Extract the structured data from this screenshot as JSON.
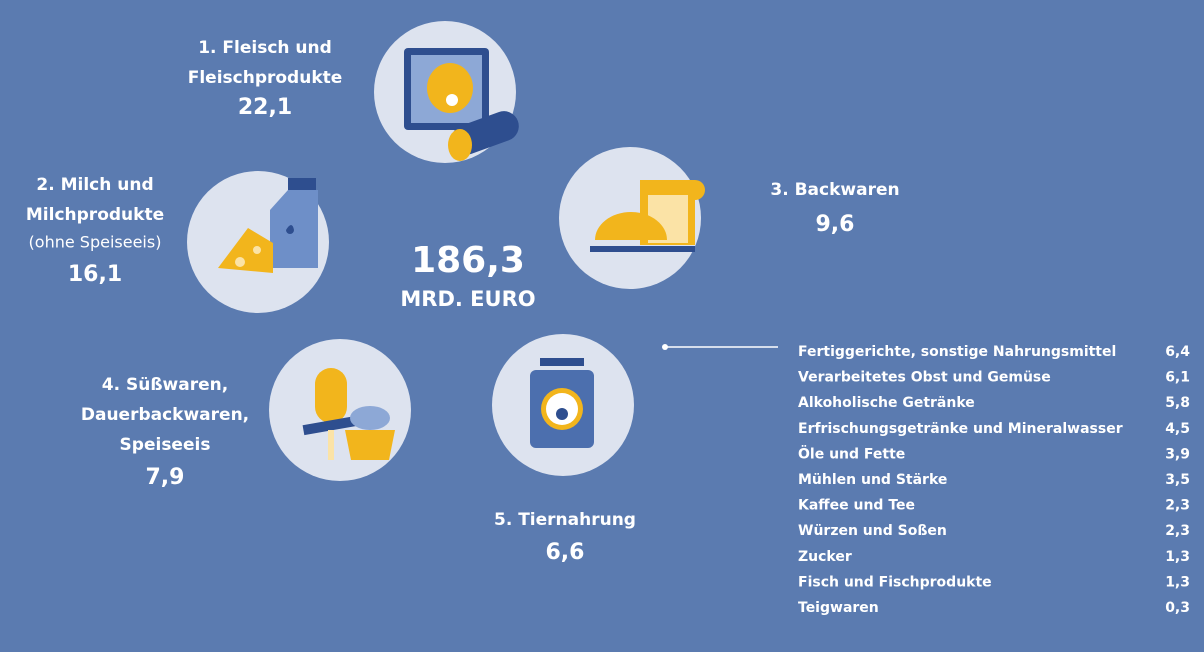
{
  "total": {
    "value": "186,3",
    "unit": "MRD. EURO"
  },
  "groups": [
    {
      "lines": [
        "1. Fleisch und",
        "Fleischprodukte"
      ],
      "value": "22,1"
    },
    {
      "lines": [
        "2. Milch und",
        "Milchprodukte"
      ],
      "note": "(ohne Speiseeis)",
      "value": "16,1"
    },
    {
      "lines": [
        "3. Backwaren"
      ],
      "value": "9,6"
    },
    {
      "lines": [
        "4. Süßwaren,",
        "Dauerbackwaren,",
        "Speiseeis"
      ],
      "value": "7,9"
    },
    {
      "lines": [
        "5. Tiernahrung"
      ],
      "value": "6,6"
    }
  ],
  "others": [
    {
      "name": "Fertiggerichte, sonstige Nahrungsmittel",
      "value": "6,4"
    },
    {
      "name": "Verarbeitetes Obst und Gemüse",
      "value": "6,1"
    },
    {
      "name": "Alkoholische Getränke",
      "value": "5,8"
    },
    {
      "name": "Erfrischungsgetränke und Mineralwasser",
      "value": "4,5"
    },
    {
      "name": "Öle und Fette",
      "value": "3,9"
    },
    {
      "name": "Mühlen und Stärke",
      "value": "3,5"
    },
    {
      "name": "Kaffee und Tee",
      "value": "2,3"
    },
    {
      "name": "Würzen und Soßen",
      "value": "2,3"
    },
    {
      "name": "Zucker",
      "value": "1,3"
    },
    {
      "name": "Fisch und Fischprodukte",
      "value": "1,3"
    },
    {
      "name": "Teigwaren",
      "value": "0,3"
    }
  ]
}
